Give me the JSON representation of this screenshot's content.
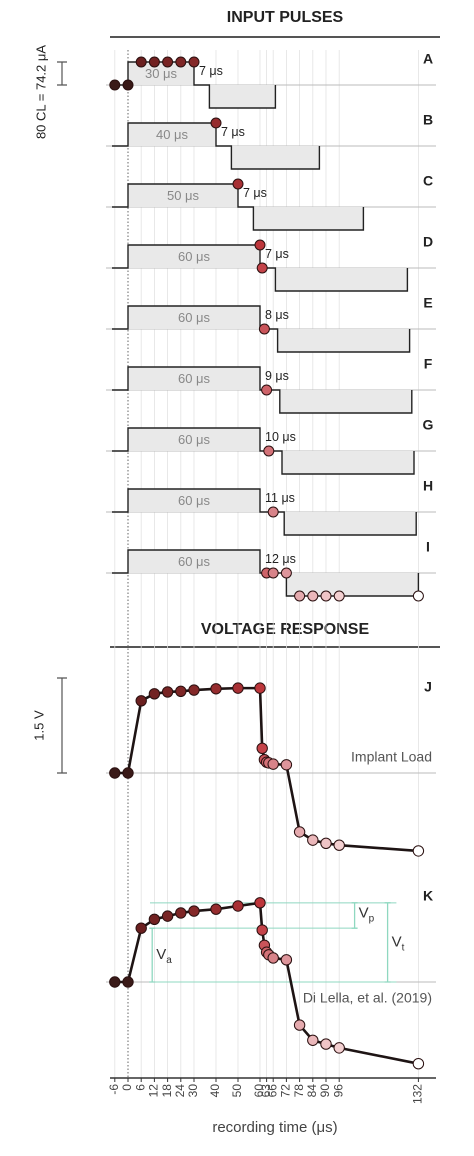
{
  "title_top": "INPUT PULSES",
  "title_bottom": "VOLTAGE RESPONSE",
  "chart_data": {
    "type": "pulse-response",
    "x_label": "recording time (μs)",
    "xlim": [
      -10,
      140
    ],
    "xticks": [
      -6,
      0,
      6,
      12,
      18,
      24,
      30,
      40,
      50,
      60,
      63,
      66,
      72,
      78,
      84,
      90,
      96,
      132
    ],
    "samples": {
      "times": [
        -6,
        0,
        6,
        12,
        18,
        24,
        30,
        40,
        50,
        60,
        61,
        62,
        63,
        64,
        66,
        72,
        78,
        84,
        90,
        96,
        132
      ],
      "colors": [
        "#3a1a18",
        "#3a1a18",
        "#6b2020",
        "#722222",
        "#782424",
        "#7e2626",
        "#842828",
        "#962c2e",
        "#a83034",
        "#bd363b",
        "#c44349",
        "#c9545a",
        "#ce6369",
        "#d37278",
        "#d88389",
        "#de959b",
        "#e5aaae",
        "#eab7ba",
        "#efc4c6",
        "#f3d0d1",
        "#ffffff"
      ]
    },
    "pulse_amplitude": 80,
    "pulse_scale": {
      "value": 80,
      "label": "80 CL = 74.2 μA"
    },
    "pulses": [
      {
        "panel": "A",
        "width": {
          "value": 30,
          "label": "30 μs"
        },
        "gap": {
          "value": 7,
          "label": "7 μs"
        },
        "marker_times": [
          -6,
          0,
          6,
          12,
          18,
          24,
          30
        ],
        "marker_levels": [
          0,
          0,
          1,
          1,
          1,
          1,
          1
        ]
      },
      {
        "panel": "B",
        "width": {
          "value": 40,
          "label": "40 μs"
        },
        "gap": {
          "value": 7,
          "label": "7 μs"
        },
        "marker_times": [
          40
        ],
        "marker_levels": [
          1
        ]
      },
      {
        "panel": "C",
        "width": {
          "value": 50,
          "label": "50 μs"
        },
        "gap": {
          "value": 7,
          "label": "7 μs"
        },
        "marker_times": [
          50
        ],
        "marker_levels": [
          1
        ]
      },
      {
        "panel": "D",
        "width": {
          "value": 60,
          "label": "60 μs"
        },
        "gap": {
          "value": 7,
          "label": "7 μs"
        },
        "marker_times": [
          60,
          61
        ],
        "marker_levels": [
          1,
          0
        ]
      },
      {
        "panel": "E",
        "width": {
          "value": 60,
          "label": "60 μs"
        },
        "gap": {
          "value": 8,
          "label": "8 μs"
        },
        "marker_times": [
          62
        ],
        "marker_levels": [
          0
        ]
      },
      {
        "panel": "F",
        "width": {
          "value": 60,
          "label": "60 μs"
        },
        "gap": {
          "value": 9,
          "label": "9 μs"
        },
        "marker_times": [
          63
        ],
        "marker_levels": [
          0
        ]
      },
      {
        "panel": "G",
        "width": {
          "value": 60,
          "label": "60 μs"
        },
        "gap": {
          "value": 10,
          "label": "10 μs"
        },
        "marker_times": [
          64
        ],
        "marker_levels": [
          0
        ]
      },
      {
        "panel": "H",
        "width": {
          "value": 60,
          "label": "60 μs"
        },
        "gap": {
          "value": 11,
          "label": "11 μs"
        },
        "marker_times": [
          66
        ],
        "marker_levels": [
          0
        ]
      },
      {
        "panel": "I",
        "width": {
          "value": 60,
          "label": "60 μs"
        },
        "gap": {
          "value": 12,
          "label": "12 μs"
        },
        "marker_times": [
          63,
          66,
          72,
          78,
          84,
          90,
          96,
          132
        ],
        "marker_levels": [
          0,
          0,
          0,
          -1,
          -1,
          -1,
          -1,
          -1
        ]
      }
    ],
    "voltage_scale": {
      "value": 1.5,
      "label": "1.5 V"
    },
    "responses": [
      {
        "panel": "J",
        "annotation": "Implant Load",
        "values": [
          0,
          0,
          1.14,
          1.25,
          1.28,
          1.29,
          1.31,
          1.33,
          1.34,
          1.34,
          0.39,
          0.21,
          0.17,
          0.16,
          0.14,
          0.13,
          -0.93,
          -1.06,
          -1.11,
          -1.14,
          -1.23
        ]
      },
      {
        "panel": "K",
        "annotation": "Di Lella, et al. (2019)",
        "values": [
          0,
          0,
          0.85,
          0.99,
          1.04,
          1.09,
          1.12,
          1.15,
          1.2,
          1.25,
          0.82,
          0.58,
          0.47,
          0.43,
          0.38,
          0.35,
          -0.68,
          -0.92,
          -0.98,
          -1.04,
          -1.29
        ],
        "measures": [
          {
            "main": "V",
            "sub": "a"
          },
          {
            "main": "V",
            "sub": "p"
          },
          {
            "main": "V",
            "sub": "t"
          }
        ]
      }
    ]
  }
}
